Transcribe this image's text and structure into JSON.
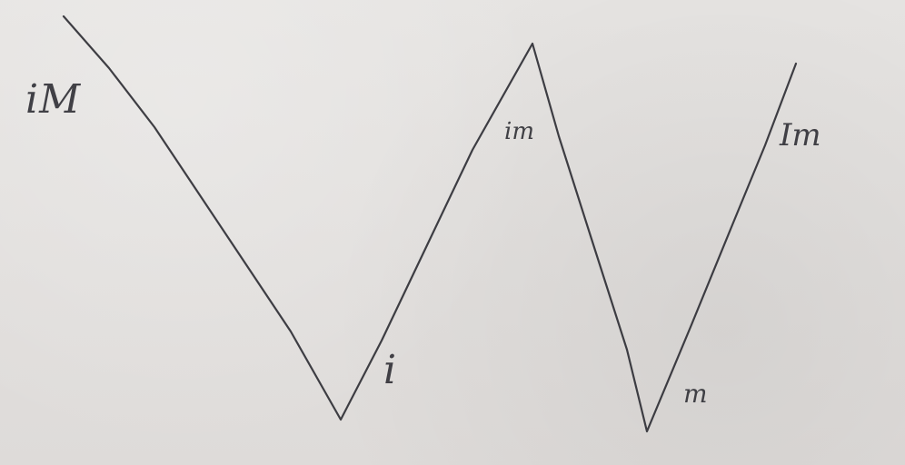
{
  "diagram": {
    "labels": {
      "iM": "iM",
      "i": "i",
      "im": "im",
      "m": "m",
      "Im": "Im"
    },
    "colors": {
      "ink": "#2f2f35",
      "paper": "#e3e1df"
    }
  }
}
